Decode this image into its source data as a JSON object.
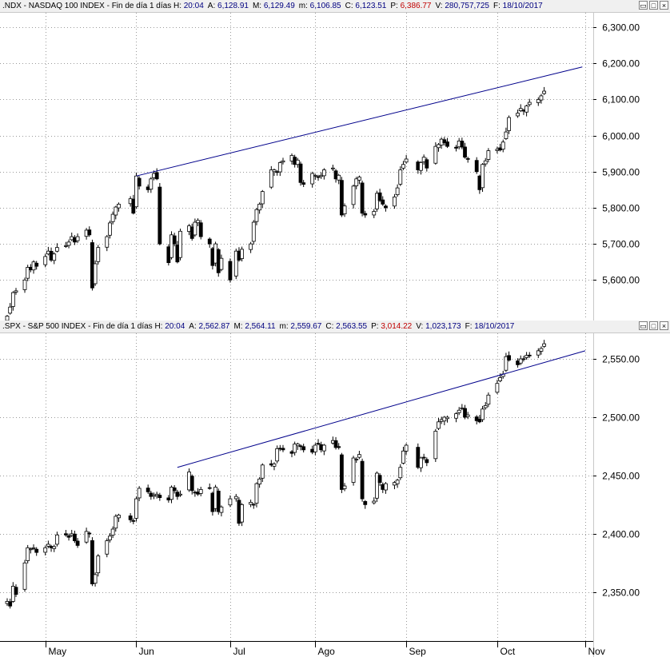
{
  "colors": {
    "up": "#ffffff",
    "down": "#000000",
    "trendline": "#00008b",
    "grid": "#9a9a9a",
    "header_bg": "#f0f0f0",
    "p_value": "#c00000"
  },
  "window_buttons": {
    "minimize": "▭",
    "maximize": "□",
    "close": "×"
  },
  "panes": [
    {
      "id": "ndx",
      "header": [
        {
          "k": ".NDX - NASDAQ 100 INDEX - Fin de día 1 días  H:",
          "v": "20:04"
        },
        {
          "k": "A:",
          "v": "6,128.91"
        },
        {
          "k": "M:",
          "v": "6,129.49"
        },
        {
          "k": "m:",
          "v": "6,106.85"
        },
        {
          "k": "C:",
          "v": "6,123.51"
        },
        {
          "k": "P:",
          "v": "6,386.77",
          "p": true
        },
        {
          "k": "V:",
          "v": "280,757,725"
        },
        {
          "k": "F:",
          "v": "18/10/2017"
        }
      ],
      "y_ticks": [
        "5,600.00",
        "5,700.00",
        "5,800.00",
        "5,900.00",
        "6,000.00",
        "6,100.00",
        "6,200.00",
        "6,300.00"
      ]
    },
    {
      "id": "spx",
      "header": [
        {
          "k": ".SPX - S&P 500 INDEX - Fin de día 1 días  H:",
          "v": "20:04"
        },
        {
          "k": "A:",
          "v": "2,562.87"
        },
        {
          "k": "M:",
          "v": "2,564.11"
        },
        {
          "k": "m:",
          "v": "2,559.67"
        },
        {
          "k": "C:",
          "v": "2,563.55"
        },
        {
          "k": "P:",
          "v": "3,014.22",
          "p": true
        },
        {
          "k": "V:",
          "v": "1,023,173"
        },
        {
          "k": "F:",
          "v": "18/10/2017"
        }
      ],
      "y_ticks": [
        "2,350.00",
        "2,400.00",
        "2,450.00",
        "2,500.00",
        "2,550.00"
      ]
    }
  ],
  "chart_data": [
    {
      "type": "candlestick",
      "series": ".NDX",
      "ylim": [
        5490,
        6340
      ],
      "y_ticks": [
        5600,
        5700,
        5800,
        5900,
        6000,
        6100,
        6200,
        6300
      ],
      "trendline": [
        {
          "x": "2017-06-01",
          "y": 5888
        },
        {
          "x": "2017-10-31",
          "y": 6190
        }
      ],
      "dates": [
        "2017-04-18",
        "2017-04-19",
        "2017-04-20",
        "2017-04-21",
        "2017-04-24",
        "2017-04-25",
        "2017-04-26",
        "2017-04-27",
        "2017-04-28",
        "2017-05-01",
        "2017-05-02",
        "2017-05-03",
        "2017-05-04",
        "2017-05-05",
        "2017-05-08",
        "2017-05-09",
        "2017-05-10",
        "2017-05-11",
        "2017-05-12",
        "2017-05-15",
        "2017-05-16",
        "2017-05-17",
        "2017-05-18",
        "2017-05-19",
        "2017-05-22",
        "2017-05-23",
        "2017-05-24",
        "2017-05-25",
        "2017-05-26",
        "2017-05-30",
        "2017-05-31",
        "2017-06-01",
        "2017-06-02",
        "2017-06-05",
        "2017-06-06",
        "2017-06-07",
        "2017-06-08",
        "2017-06-09",
        "2017-06-12",
        "2017-06-13",
        "2017-06-14",
        "2017-06-15",
        "2017-06-16",
        "2017-06-19",
        "2017-06-20",
        "2017-06-21",
        "2017-06-22",
        "2017-06-23",
        "2017-06-26",
        "2017-06-27",
        "2017-06-28",
        "2017-06-29",
        "2017-06-30",
        "2017-07-03",
        "2017-07-05",
        "2017-07-06",
        "2017-07-07",
        "2017-07-10",
        "2017-07-11",
        "2017-07-12",
        "2017-07-13",
        "2017-07-14",
        "2017-07-17",
        "2017-07-18",
        "2017-07-19",
        "2017-07-20",
        "2017-07-21",
        "2017-07-24",
        "2017-07-25",
        "2017-07-26",
        "2017-07-27",
        "2017-07-28",
        "2017-07-31",
        "2017-08-01",
        "2017-08-02",
        "2017-08-03",
        "2017-08-04",
        "2017-08-07",
        "2017-08-08",
        "2017-08-09",
        "2017-08-10",
        "2017-08-11",
        "2017-08-14",
        "2017-08-15",
        "2017-08-16",
        "2017-08-17",
        "2017-08-18",
        "2017-08-21",
        "2017-08-22",
        "2017-08-23",
        "2017-08-24",
        "2017-08-25",
        "2017-08-28",
        "2017-08-29",
        "2017-08-30",
        "2017-08-31",
        "2017-09-01",
        "2017-09-05",
        "2017-09-06",
        "2017-09-07",
        "2017-09-08",
        "2017-09-11",
        "2017-09-12",
        "2017-09-13",
        "2017-09-14",
        "2017-09-15",
        "2017-09-18",
        "2017-09-19",
        "2017-09-20",
        "2017-09-21",
        "2017-09-22",
        "2017-09-25",
        "2017-09-26",
        "2017-09-27",
        "2017-09-28",
        "2017-09-29",
        "2017-10-02",
        "2017-10-03",
        "2017-10-04",
        "2017-10-05",
        "2017-10-06",
        "2017-10-09",
        "2017-10-10",
        "2017-10-11",
        "2017-10-12",
        "2017-10-13",
        "2017-10-16",
        "2017-10-17",
        "2017-10-18"
      ],
      "close": [
        5500,
        5525,
        5565,
        5570,
        5600,
        5635,
        5628,
        5650,
        5638,
        5665,
        5680,
        5655,
        5672,
        5690,
        5695,
        5705,
        5720,
        5705,
        5720,
        5738,
        5725,
        5578,
        5645,
        5690,
        5720,
        5758,
        5782,
        5802,
        5810,
        5825,
        5785,
        5888,
        5860,
        5850,
        5880,
        5895,
        5880,
        5700,
        5648,
        5725,
        5700,
        5650,
        5735,
        5750,
        5715,
        5760,
        5765,
        5720,
        5700,
        5640,
        5700,
        5620,
        5660,
        5600,
        5680,
        5655,
        5685,
        5700,
        5760,
        5795,
        5810,
        5845,
        5905,
        5905,
        5900,
        5925,
        5930,
        5945,
        5920,
        5932,
        5870,
        5865,
        5895,
        5890,
        5885,
        5890,
        5905,
        5910,
        5880,
        5890,
        5780,
        5805,
        5860,
        5880,
        5885,
        5785,
        5780,
        5790,
        5840,
        5820,
        5810,
        5800,
        5830,
        5855,
        5905,
        5920,
        5935,
        5905,
        5925,
        5940,
        5910,
        5970,
        5975,
        5990,
        5980,
        5970,
        5965,
        5985,
        5968,
        5940,
        5935,
        5900,
        5850,
        5920,
        5930,
        5958,
        5962,
        5960,
        5982,
        6010,
        6050,
        6062,
        6075,
        6068,
        6082,
        6092,
        6100,
        6110,
        6123
      ]
    },
    {
      "type": "candlestick",
      "series": ".SPX",
      "ylim": [
        2308,
        2572
      ],
      "y_ticks": [
        2350,
        2400,
        2450,
        2500,
        2550
      ],
      "trendline": [
        {
          "x": "2017-06-15",
          "y": 2457
        },
        {
          "x": "2017-11-01",
          "y": 2557
        }
      ],
      "dates": [
        "2017-04-18",
        "2017-04-19",
        "2017-04-20",
        "2017-04-21",
        "2017-04-24",
        "2017-04-25",
        "2017-04-26",
        "2017-04-27",
        "2017-04-28",
        "2017-05-01",
        "2017-05-02",
        "2017-05-03",
        "2017-05-04",
        "2017-05-05",
        "2017-05-08",
        "2017-05-09",
        "2017-05-10",
        "2017-05-11",
        "2017-05-12",
        "2017-05-15",
        "2017-05-16",
        "2017-05-17",
        "2017-05-18",
        "2017-05-19",
        "2017-05-22",
        "2017-05-23",
        "2017-05-24",
        "2017-05-25",
        "2017-05-26",
        "2017-05-30",
        "2017-05-31",
        "2017-06-01",
        "2017-06-02",
        "2017-06-05",
        "2017-06-06",
        "2017-06-07",
        "2017-06-08",
        "2017-06-09",
        "2017-06-12",
        "2017-06-13",
        "2017-06-14",
        "2017-06-15",
        "2017-06-16",
        "2017-06-19",
        "2017-06-20",
        "2017-06-21",
        "2017-06-22",
        "2017-06-23",
        "2017-06-26",
        "2017-06-27",
        "2017-06-28",
        "2017-06-29",
        "2017-06-30",
        "2017-07-03",
        "2017-07-05",
        "2017-07-06",
        "2017-07-07",
        "2017-07-10",
        "2017-07-11",
        "2017-07-12",
        "2017-07-13",
        "2017-07-14",
        "2017-07-17",
        "2017-07-18",
        "2017-07-19",
        "2017-07-20",
        "2017-07-21",
        "2017-07-24",
        "2017-07-25",
        "2017-07-26",
        "2017-07-27",
        "2017-07-28",
        "2017-07-31",
        "2017-08-01",
        "2017-08-02",
        "2017-08-03",
        "2017-08-04",
        "2017-08-07",
        "2017-08-08",
        "2017-08-09",
        "2017-08-10",
        "2017-08-11",
        "2017-08-14",
        "2017-08-15",
        "2017-08-16",
        "2017-08-17",
        "2017-08-18",
        "2017-08-21",
        "2017-08-22",
        "2017-08-23",
        "2017-08-24",
        "2017-08-25",
        "2017-08-28",
        "2017-08-29",
        "2017-08-30",
        "2017-08-31",
        "2017-09-01",
        "2017-09-05",
        "2017-09-06",
        "2017-09-07",
        "2017-09-08",
        "2017-09-11",
        "2017-09-12",
        "2017-09-13",
        "2017-09-14",
        "2017-09-15",
        "2017-09-18",
        "2017-09-19",
        "2017-09-20",
        "2017-09-21",
        "2017-09-22",
        "2017-09-25",
        "2017-09-26",
        "2017-09-27",
        "2017-09-28",
        "2017-09-29",
        "2017-10-02",
        "2017-10-03",
        "2017-10-04",
        "2017-10-05",
        "2017-10-06",
        "2017-10-09",
        "2017-10-10",
        "2017-10-11",
        "2017-10-12",
        "2017-10-13",
        "2017-10-16",
        "2017-10-17",
        "2017-10-18"
      ],
      "close": [
        2342,
        2338,
        2355,
        2348,
        2375,
        2388,
        2387,
        2388,
        2384,
        2388,
        2391,
        2388,
        2389,
        2399,
        2399,
        2397,
        2400,
        2394,
        2390,
        2402,
        2400,
        2357,
        2365,
        2381,
        2394,
        2398,
        2404,
        2415,
        2416,
        2412,
        2411,
        2430,
        2439,
        2436,
        2432,
        2433,
        2434,
        2431,
        2429,
        2440,
        2437,
        2432,
        2434,
        2453,
        2437,
        2435,
        2434,
        2438,
        2439,
        2419,
        2440,
        2419,
        2423,
        2430,
        2432,
        2409,
        2425,
        2427,
        2425,
        2443,
        2447,
        2459,
        2459,
        2460,
        2473,
        2473,
        2472,
        2469,
        2477,
        2477,
        2475,
        2472,
        2470,
        2476,
        2477,
        2472,
        2476,
        2480,
        2474,
        2474,
        2438,
        2441,
        2465,
        2464,
        2468,
        2430,
        2425,
        2428,
        2452,
        2444,
        2438,
        2443,
        2444,
        2446,
        2457,
        2471,
        2476,
        2457,
        2465,
        2465,
        2461,
        2488,
        2496,
        2498,
        2500,
        2500,
        2503,
        2506,
        2508,
        2500,
        2502,
        2497,
        2496,
        2507,
        2510,
        2519,
        2529,
        2534,
        2537,
        2552,
        2549,
        2545,
        2550,
        2550,
        2553,
        2553,
        2557,
        2559,
        2563
      ]
    }
  ],
  "x_axis": {
    "labels": [
      {
        "label": "May",
        "date": "2017-05-01"
      },
      {
        "label": "Jun",
        "date": "2017-06-01"
      },
      {
        "label": "Jul",
        "date": "2017-07-03"
      },
      {
        "label": "Ago",
        "date": "2017-08-01"
      },
      {
        "label": "Sep",
        "date": "2017-09-01"
      },
      {
        "label": "Oct",
        "date": "2017-10-02"
      },
      {
        "label": "Nov",
        "date": "2017-11-01"
      }
    ]
  }
}
